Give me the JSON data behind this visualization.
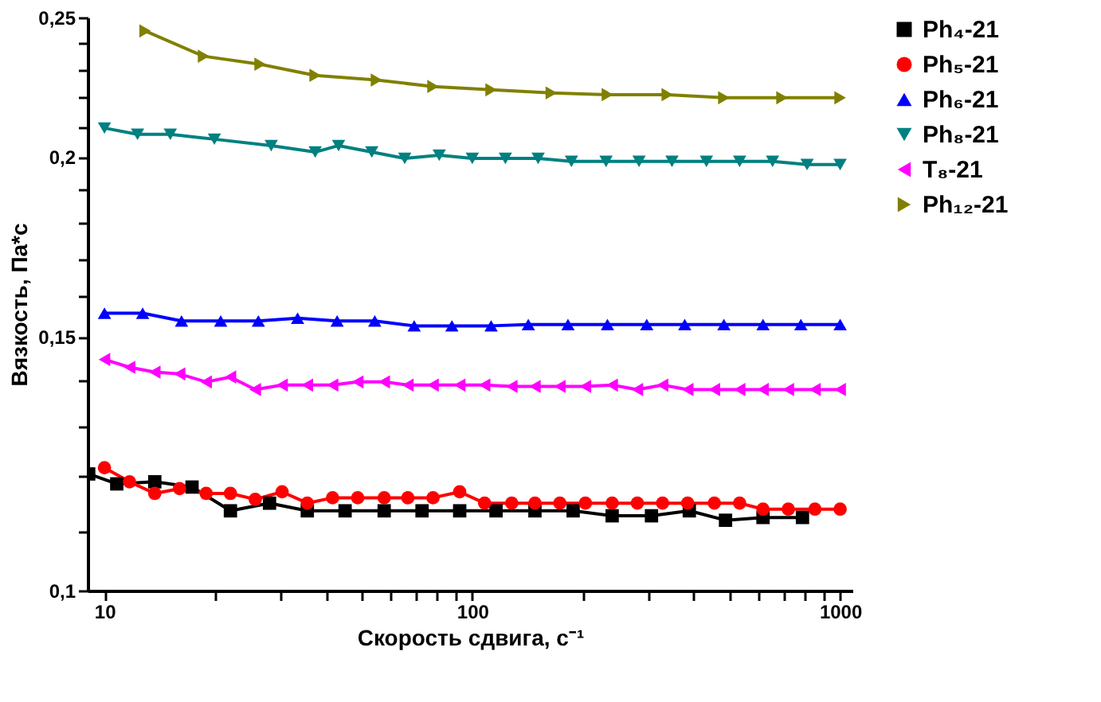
{
  "chart_data": {
    "type": "line",
    "xlabel": "Скорость сдвига, с⁻¹",
    "ylabel": "Вязкость, Па*с",
    "log": "xy",
    "grid": false,
    "legend": "right",
    "line_style": "solid",
    "xlim": [
      9,
      1080
    ],
    "ylim": [
      0.1,
      0.25
    ],
    "xticks": [
      10,
      {
        "value": 20,
        "label": null
      },
      {
        "value": 30,
        "label": null
      },
      {
        "value": 40,
        "label": null
      },
      {
        "value": 50,
        "label": null
      },
      {
        "value": 60,
        "label": null
      },
      {
        "value": 70,
        "label": null
      },
      {
        "value": 80,
        "label": null
      },
      {
        "value": 90,
        "label": null
      },
      100,
      {
        "value": 200,
        "label": null
      },
      {
        "value": 300,
        "label": null
      },
      {
        "value": 400,
        "label": null
      },
      {
        "value": 500,
        "label": null
      },
      {
        "value": 600,
        "label": null
      },
      {
        "value": 700,
        "label": null
      },
      {
        "value": 800,
        "label": null
      },
      {
        "value": 900,
        "label": null
      },
      1000
    ],
    "yticks": [
      {
        "value": 0.1,
        "label": "0,1"
      },
      {
        "value": 0.11,
        "label": null
      },
      {
        "value": 0.12,
        "label": null
      },
      {
        "value": 0.13,
        "label": null
      },
      {
        "value": 0.14,
        "label": null
      },
      {
        "value": 0.15,
        "label": "0,15"
      },
      {
        "value": 0.16,
        "label": null
      },
      {
        "value": 0.17,
        "label": null
      },
      {
        "value": 0.18,
        "label": null
      },
      {
        "value": 0.19,
        "label": null
      },
      {
        "value": 0.2,
        "label": "0,2"
      },
      {
        "value": 0.21,
        "label": null
      },
      {
        "value": 0.22,
        "label": null
      },
      {
        "value": 0.23,
        "label": null
      },
      {
        "value": 0.24,
        "label": null
      },
      {
        "value": 0.25,
        "label": "0,25"
      }
    ],
    "series": [
      {
        "name": "Ph₄-21",
        "color": "#000000",
        "marker": "square",
        "x": [
          9.06,
          10.8,
          13.7,
          17.3,
          22.0,
          28.1,
          35.6,
          45.1,
          57.6,
          73.0,
          92.4,
          116,
          148,
          188,
          240,
          307,
          389,
          488,
          617,
          790
        ],
        "values": [
          0.1205,
          0.1186,
          0.119,
          0.118,
          0.1136,
          0.115,
          0.1136,
          0.1136,
          0.1136,
          0.1136,
          0.1136,
          0.1136,
          0.1136,
          0.1136,
          0.1127,
          0.1127,
          0.1136,
          0.1119,
          0.1124,
          0.1124
        ]
      },
      {
        "name": "Ph₅-21",
        "color": "#ff0000",
        "marker": "circle",
        "x": [
          10,
          11.7,
          13.7,
          16.0,
          18.9,
          22.0,
          25.7,
          30.4,
          35.6,
          41.7,
          48.8,
          57.6,
          66.8,
          78.2,
          92.4,
          108,
          128,
          148,
          173,
          203,
          240,
          281,
          329,
          385,
          455,
          533,
          617,
          723,
          854,
          1000
        ],
        "values": [
          0.1217,
          0.119,
          0.1168,
          0.1177,
          0.1168,
          0.1168,
          0.1157,
          0.1171,
          0.115,
          0.116,
          0.116,
          0.116,
          0.116,
          0.116,
          0.1171,
          0.115,
          0.115,
          0.115,
          0.115,
          0.115,
          0.115,
          0.115,
          0.115,
          0.115,
          0.115,
          0.115,
          0.1139,
          0.1139,
          0.1139,
          0.1139
        ]
      },
      {
        "name": "Ph₆-21",
        "color": "#0000ff",
        "marker": "triangle-up",
        "x": [
          10,
          12.7,
          16.2,
          20.7,
          26.2,
          33.5,
          42.9,
          54.3,
          69.5,
          88.0,
          112.5,
          142,
          182,
          233,
          298,
          378,
          483,
          617,
          782,
          1000
        ],
        "values": [
          0.1558,
          0.1558,
          0.1539,
          0.1539,
          0.1539,
          0.1546,
          0.1539,
          0.1539,
          0.1527,
          0.1527,
          0.1527,
          0.153,
          0.153,
          0.153,
          0.153,
          0.153,
          0.153,
          0.153,
          0.153,
          0.153
        ]
      },
      {
        "name": "Ph₈-21",
        "color": "#008080",
        "marker": "triangle-down",
        "x": [
          10,
          12.3,
          15.1,
          19.9,
          28.4,
          37.4,
          43.3,
          53.3,
          65.5,
          81.3,
          100,
          123,
          151,
          186,
          231,
          284,
          349,
          433,
          533,
          655,
          813,
          1000
        ],
        "values": [
          0.2095,
          0.2074,
          0.2074,
          0.2058,
          0.2037,
          0.2016,
          0.2037,
          0.2016,
          0.1996,
          0.2006,
          0.1996,
          0.1996,
          0.1996,
          0.1986,
          0.1986,
          0.1986,
          0.1986,
          0.1986,
          0.1986,
          0.1986,
          0.1976,
          0.1976
        ]
      },
      {
        "name": "T₈-21",
        "color": "#ff00ff",
        "marker": "triangle-left",
        "x": [
          10,
          11.7,
          13.7,
          16.0,
          18.9,
          22.0,
          25.7,
          30.4,
          35.6,
          41.7,
          48.8,
          57.6,
          66.8,
          78.2,
          92.4,
          108,
          128,
          148,
          173,
          203,
          240,
          281,
          329,
          385,
          455,
          533,
          617,
          723,
          854,
          1000
        ],
        "values": [
          0.1447,
          0.1429,
          0.1418,
          0.1414,
          0.1396,
          0.1407,
          0.1379,
          0.1389,
          0.1389,
          0.1389,
          0.1396,
          0.1396,
          0.1389,
          0.1389,
          0.1389,
          0.1389,
          0.1386,
          0.1386,
          0.1386,
          0.1386,
          0.1389,
          0.1379,
          0.1389,
          0.1379,
          0.1379,
          0.1379,
          0.1379,
          0.1379,
          0.1379,
          0.1379
        ]
      },
      {
        "name": "Ph₁₂-21",
        "color": "#808000",
        "marker": "triangle-right",
        "x": [
          12.9,
          18.6,
          26.5,
          37.4,
          54.9,
          78.2,
          112.5,
          164,
          233,
          339,
          483,
          695,
          1000
        ],
        "values": [
          0.2447,
          0.235,
          0.232,
          0.2279,
          0.2262,
          0.2239,
          0.2227,
          0.2216,
          0.221,
          0.221,
          0.2199,
          0.2199,
          0.2199
        ]
      }
    ]
  }
}
